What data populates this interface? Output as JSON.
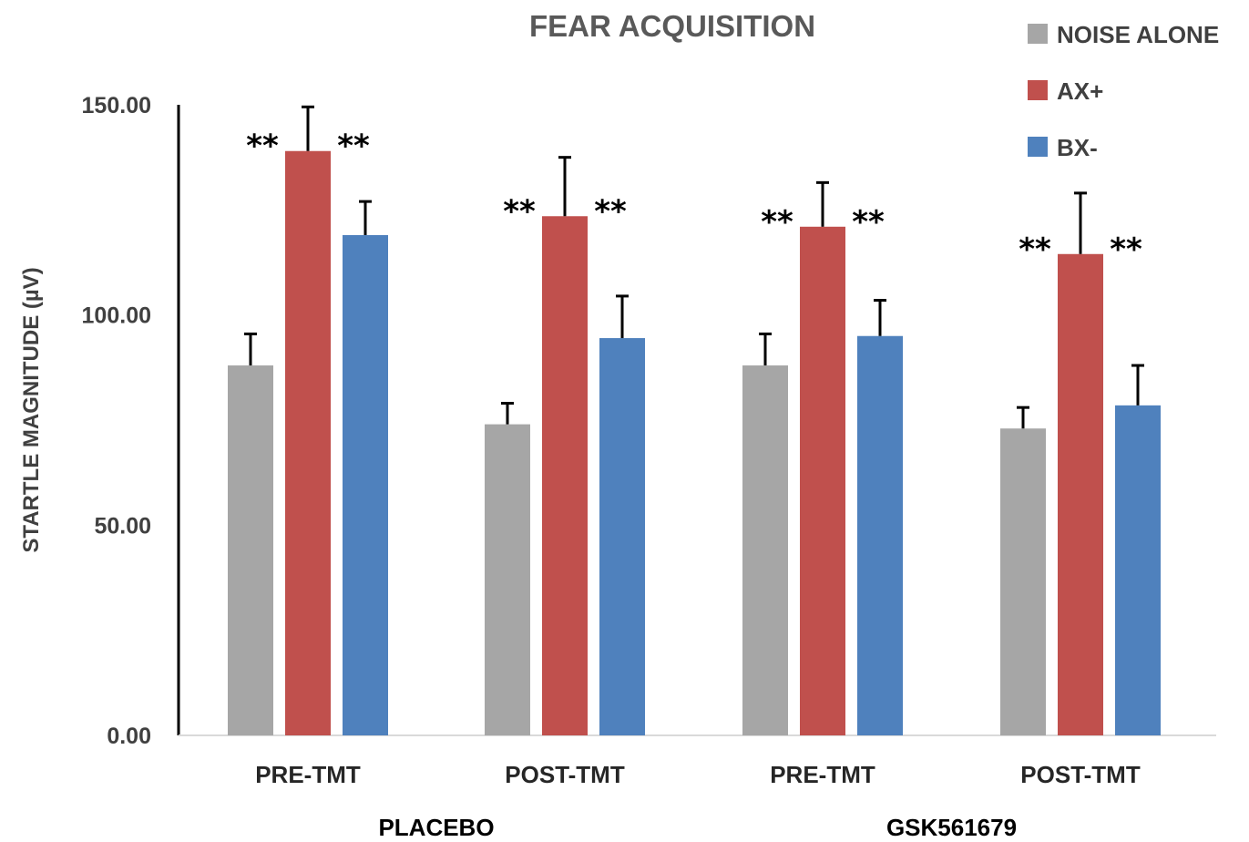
{
  "chart_data": {
    "type": "bar",
    "title": "FEAR ACQUISITION",
    "ylabel": "STARTLE MAGNITUDE (µV)",
    "xlabel": "",
    "ylim": [
      0,
      150
    ],
    "yticks": [
      "0.00",
      "50.00",
      "100.00",
      "150.00"
    ],
    "categories": [
      "PRE-TMT",
      "POST-TMT",
      "PRE-TMT",
      "POST-TMT"
    ],
    "groups": [
      {
        "label": "PLACEBO",
        "categories": [
          0,
          1
        ]
      },
      {
        "label": "GSK561679",
        "categories": [
          2,
          3
        ]
      }
    ],
    "series": [
      {
        "name": "NOISE ALONE",
        "color": "#a6a6a6",
        "values": [
          88,
          74,
          88,
          73
        ],
        "errors": [
          7.5,
          5,
          7.5,
          5
        ]
      },
      {
        "name": "AX+",
        "color": "#c0504d",
        "values": [
          139,
          123.5,
          121,
          114.5
        ],
        "errors": [
          10.5,
          14,
          10.5,
          14.5
        ]
      },
      {
        "name": "BX-",
        "color": "#4f81bd",
        "values": [
          119,
          94.5,
          95,
          78.5
        ],
        "errors": [
          8,
          10,
          8.5,
          9.5
        ]
      }
    ],
    "annotations": [
      "**",
      "**",
      "**",
      "**",
      "**",
      "**",
      "**",
      "**"
    ],
    "legend_position": "top-right",
    "grid": false
  }
}
